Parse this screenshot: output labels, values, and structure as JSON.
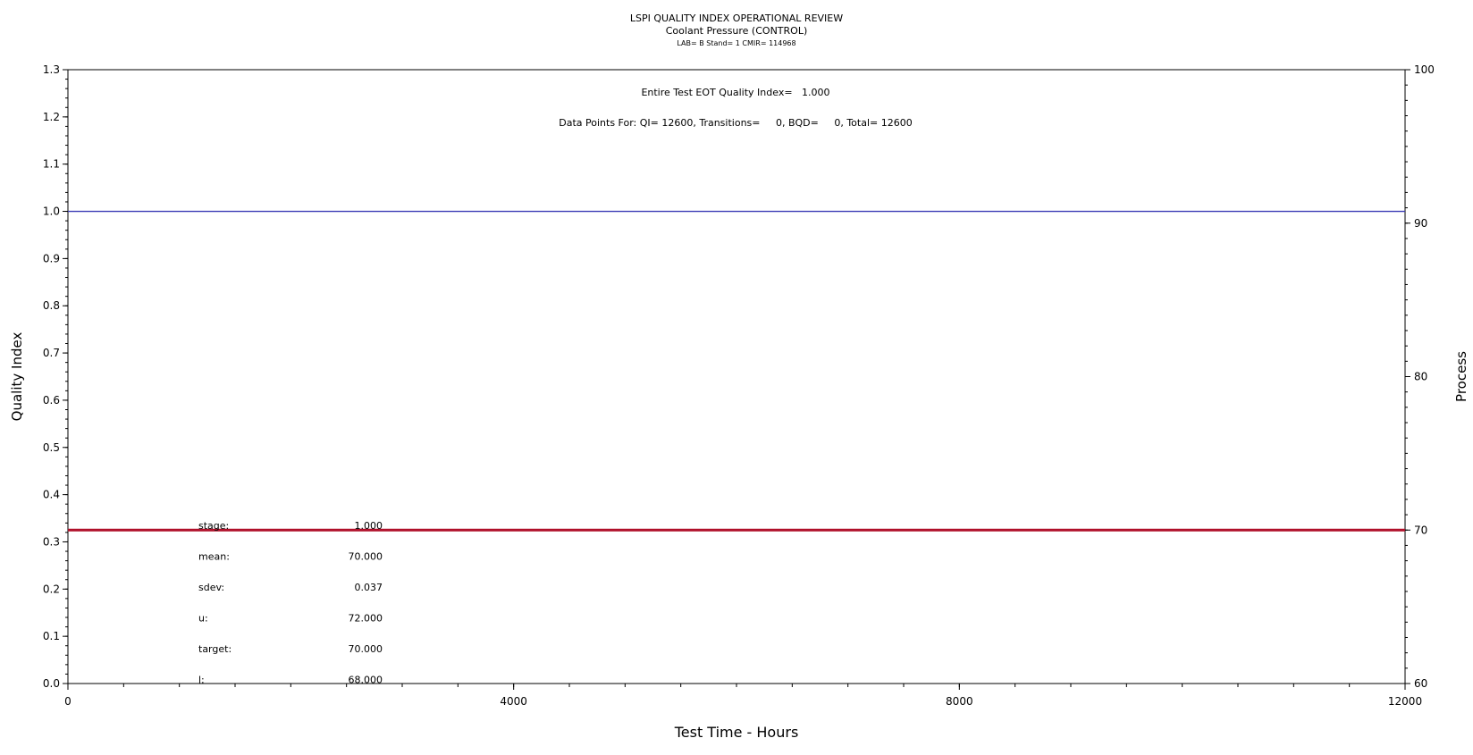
{
  "header": {
    "title": "LSPI QUALITY INDEX OPERATIONAL REVIEW",
    "subtitle": "Coolant Pressure (CONTROL)",
    "subtitle2": "LAB= B Stand= 1 CMIR= 114968"
  },
  "annotations": {
    "eot": "Entire Test EOT Quality Index=   1.000",
    "points": "Data Points For: QI= 12600, Transitions=     0, BQD=     0, Total= 12600"
  },
  "stats": [
    {
      "label": "stage:",
      "value": "1.000"
    },
    {
      "label": "mean:",
      "value": "70.000"
    },
    {
      "label": "sdev:",
      "value": "0.037"
    },
    {
      "label": "u:",
      "value": "72.000"
    },
    {
      "label": "target:",
      "value": "70.000"
    },
    {
      "label": "l:",
      "value": "68.000"
    }
  ],
  "colors": {
    "quality_index": "#3b3bb5",
    "process": "#b0102a",
    "axis": "#000000"
  },
  "chart_data": {
    "type": "line",
    "xlabel": "Test Time - Hours",
    "ylabel": "Quality Index",
    "y2label": "Process",
    "xlim": [
      0,
      12000
    ],
    "ylim": [
      0,
      1.3
    ],
    "y2lim": [
      60,
      100
    ],
    "x_ticks": [
      "0",
      "4000",
      "8000",
      "12000"
    ],
    "y_ticks": [
      "0.0",
      "0.1",
      "0.2",
      "0.3",
      "0.4",
      "0.5",
      "0.6",
      "0.7",
      "0.8",
      "0.9",
      "1.0",
      "1.1",
      "1.2",
      "1.3"
    ],
    "y2_ticks": [
      "60",
      "70",
      "80",
      "90",
      "100"
    ],
    "series": [
      {
        "axis": "left",
        "x": [
          0,
          12000
        ],
        "y": [
          1.0,
          1.0
        ]
      },
      {
        "axis": "right",
        "x": [
          0,
          12000
        ],
        "y": [
          70.0,
          70.0
        ]
      }
    ]
  }
}
